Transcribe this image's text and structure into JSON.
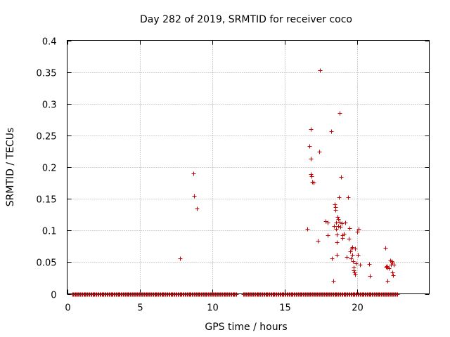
{
  "chart_data": {
    "type": "scatter",
    "title": "Day 282 of 2019, SRMTID for receiver coco",
    "xlabel": "GPS time / hours",
    "ylabel": "SRMTID / TECUs",
    "xlim": [
      0,
      25
    ],
    "ylim": [
      0,
      0.4
    ],
    "xticks": [
      0,
      5,
      10,
      15,
      20
    ],
    "xtick_labels": [
      "0",
      "5",
      "10",
      "15",
      "20"
    ],
    "yticks": [
      0,
      0.05,
      0.1,
      0.15,
      0.2,
      0.25,
      0.3,
      0.35,
      0.4
    ],
    "ytick_labels": [
      "0",
      "0.05",
      "0.1",
      "0.15",
      "0.2",
      "0.25",
      "0.3",
      "0.35",
      "0.4"
    ],
    "grid": true,
    "marker": "+",
    "color": "#cc0000",
    "zero_baseline_ranges": [
      [
        0.35,
        11.7
      ],
      [
        12.15,
        22.8
      ]
    ],
    "zero_baseline_step": 0.07,
    "series": [
      {
        "name": "SRMTID",
        "points": [
          [
            7.8,
            0.056
          ],
          [
            8.7,
            0.19
          ],
          [
            8.75,
            0.155
          ],
          [
            8.95,
            0.135
          ],
          [
            16.6,
            0.102
          ],
          [
            16.7,
            0.233
          ],
          [
            16.8,
            0.26
          ],
          [
            16.8,
            0.213
          ],
          [
            16.85,
            0.186
          ],
          [
            16.8,
            0.189
          ],
          [
            16.9,
            0.177
          ],
          [
            17.0,
            0.176
          ],
          [
            17.3,
            0.084
          ],
          [
            17.4,
            0.224
          ],
          [
            17.45,
            0.353
          ],
          [
            17.85,
            0.115
          ],
          [
            18.0,
            0.113
          ],
          [
            18.0,
            0.092
          ],
          [
            18.25,
            0.257
          ],
          [
            18.3,
            0.056
          ],
          [
            18.35,
            0.021
          ],
          [
            18.4,
            0.107
          ],
          [
            18.45,
            0.141
          ],
          [
            18.5,
            0.137
          ],
          [
            18.5,
            0.132
          ],
          [
            18.55,
            0.113
          ],
          [
            18.55,
            0.103
          ],
          [
            18.6,
            0.094
          ],
          [
            18.6,
            0.081
          ],
          [
            18.6,
            0.061
          ],
          [
            18.65,
            0.121
          ],
          [
            18.7,
            0.118
          ],
          [
            18.7,
            0.107
          ],
          [
            18.75,
            0.152
          ],
          [
            18.8,
            0.285
          ],
          [
            18.8,
            0.114
          ],
          [
            18.85,
            0.106
          ],
          [
            18.9,
            0.184
          ],
          [
            18.95,
            0.111
          ],
          [
            19.0,
            0.092
          ],
          [
            19.0,
            0.088
          ],
          [
            19.1,
            0.095
          ],
          [
            19.2,
            0.113
          ],
          [
            19.3,
            0.058
          ],
          [
            19.4,
            0.152
          ],
          [
            19.45,
            0.087
          ],
          [
            19.5,
            0.104
          ],
          [
            19.55,
            0.067
          ],
          [
            19.6,
            0.056
          ],
          [
            19.65,
            0.071
          ],
          [
            19.7,
            0.074
          ],
          [
            19.7,
            0.062
          ],
          [
            19.75,
            0.052
          ],
          [
            19.8,
            0.042
          ],
          [
            19.8,
            0.037
          ],
          [
            19.85,
            0.034
          ],
          [
            19.9,
            0.031
          ],
          [
            19.9,
            0.071
          ],
          [
            19.95,
            0.048
          ],
          [
            20.0,
            0.098
          ],
          [
            20.05,
            0.062
          ],
          [
            20.1,
            0.103
          ],
          [
            20.2,
            0.046
          ],
          [
            20.85,
            0.047
          ],
          [
            20.9,
            0.028
          ],
          [
            21.95,
            0.073
          ],
          [
            22.0,
            0.043
          ],
          [
            22.05,
            0.044
          ],
          [
            22.1,
            0.041
          ],
          [
            22.1,
            0.021
          ],
          [
            22.2,
            0.04
          ],
          [
            22.3,
            0.053
          ],
          [
            22.35,
            0.046
          ],
          [
            22.4,
            0.051
          ],
          [
            22.45,
            0.049
          ],
          [
            22.45,
            0.034
          ],
          [
            22.5,
            0.029
          ],
          [
            22.55,
            0.046
          ]
        ]
      }
    ]
  }
}
